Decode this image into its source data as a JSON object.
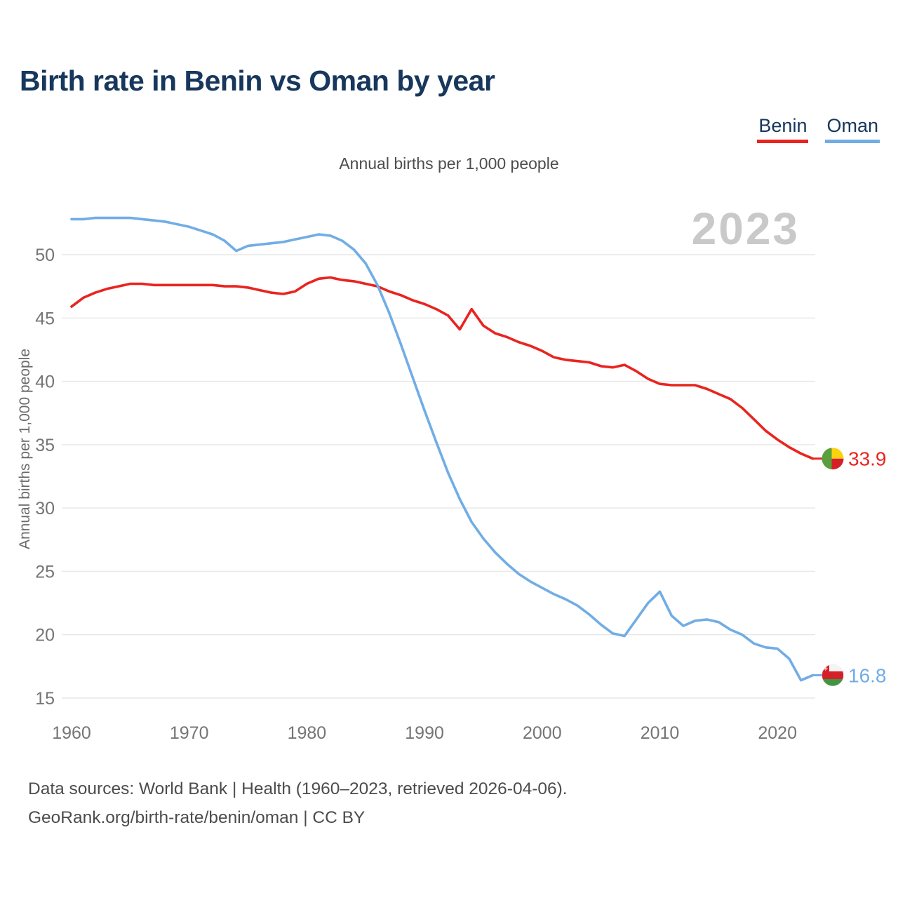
{
  "title": "Birth rate in Benin vs Oman by year",
  "legend": [
    {
      "label": "Benin",
      "color": "#e9241f"
    },
    {
      "label": "Oman",
      "color": "#71ade5"
    }
  ],
  "subtitle": "Annual births per 1,000 people",
  "y_axis_label": "Annual births per 1,000 people",
  "watermark": "2023",
  "footer": {
    "line1": "Data sources: World Bank | Health (1960–2023, retrieved 2026-04-06).",
    "line2": "GeoRank.org/birth-rate/benin/oman | CC BY"
  },
  "chart_data": {
    "type": "line",
    "title": "Birth rate in Benin vs Oman by year",
    "subtitle": "Annual births per 1,000 people",
    "xlabel": "",
    "ylabel": "Annual births per 1,000 people",
    "grid": true,
    "legend_position": "top-right",
    "x_ticks": [
      1960,
      1970,
      1980,
      1990,
      2000,
      2010,
      2020
    ],
    "y_ticks": [
      15,
      20,
      25,
      30,
      35,
      40,
      45,
      50
    ],
    "ylim": [
      13.5,
      54.5
    ],
    "xlim": [
      1960,
      2023
    ],
    "x": [
      1960,
      1961,
      1962,
      1963,
      1964,
      1965,
      1966,
      1967,
      1968,
      1969,
      1970,
      1971,
      1972,
      1973,
      1974,
      1975,
      1976,
      1977,
      1978,
      1979,
      1980,
      1981,
      1982,
      1983,
      1984,
      1985,
      1986,
      1987,
      1988,
      1989,
      1990,
      1991,
      1992,
      1993,
      1994,
      1995,
      1996,
      1997,
      1998,
      1999,
      2000,
      2001,
      2002,
      2003,
      2004,
      2005,
      2006,
      2007,
      2008,
      2009,
      2010,
      2011,
      2012,
      2013,
      2014,
      2015,
      2016,
      2017,
      2018,
      2019,
      2020,
      2021,
      2022,
      2023
    ],
    "series": [
      {
        "name": "Benin",
        "color": "#e9241f",
        "end_label": "33.9",
        "end_value": 33.9,
        "flag_icon": "benin-flag-icon",
        "values": [
          45.9,
          46.6,
          47.0,
          47.3,
          47.5,
          47.7,
          47.7,
          47.6,
          47.6,
          47.6,
          47.6,
          47.6,
          47.6,
          47.5,
          47.5,
          47.4,
          47.2,
          47.0,
          46.9,
          47.1,
          47.7,
          48.1,
          48.2,
          48.0,
          47.9,
          47.7,
          47.5,
          47.1,
          46.8,
          46.4,
          46.1,
          45.7,
          45.2,
          44.1,
          45.7,
          44.4,
          43.8,
          43.5,
          43.1,
          42.8,
          42.4,
          41.9,
          41.7,
          41.6,
          41.5,
          41.2,
          41.1,
          41.3,
          40.8,
          40.2,
          39.8,
          39.7,
          39.7,
          39.7,
          39.4,
          39.0,
          38.6,
          37.9,
          37.0,
          36.1,
          35.4,
          34.8,
          34.3,
          33.9
        ]
      },
      {
        "name": "Oman",
        "color": "#71ade5",
        "end_label": "16.8",
        "end_value": 16.8,
        "flag_icon": "oman-flag-icon",
        "values": [
          52.8,
          52.8,
          52.9,
          52.9,
          52.9,
          52.9,
          52.8,
          52.7,
          52.6,
          52.4,
          52.2,
          51.9,
          51.6,
          51.1,
          50.3,
          50.7,
          50.8,
          50.9,
          51.0,
          51.2,
          51.4,
          51.6,
          51.5,
          51.1,
          50.4,
          49.3,
          47.6,
          45.4,
          42.9,
          40.3,
          37.7,
          35.2,
          32.8,
          30.7,
          28.9,
          27.6,
          26.5,
          25.6,
          24.8,
          24.2,
          23.7,
          23.2,
          22.8,
          22.3,
          21.6,
          20.8,
          20.1,
          19.9,
          21.2,
          22.5,
          23.4,
          21.5,
          20.7,
          21.1,
          21.2,
          21.0,
          20.4,
          20.0,
          19.3,
          19.0,
          18.9,
          18.1,
          16.4,
          16.8
        ]
      }
    ],
    "watermark": "2023"
  }
}
